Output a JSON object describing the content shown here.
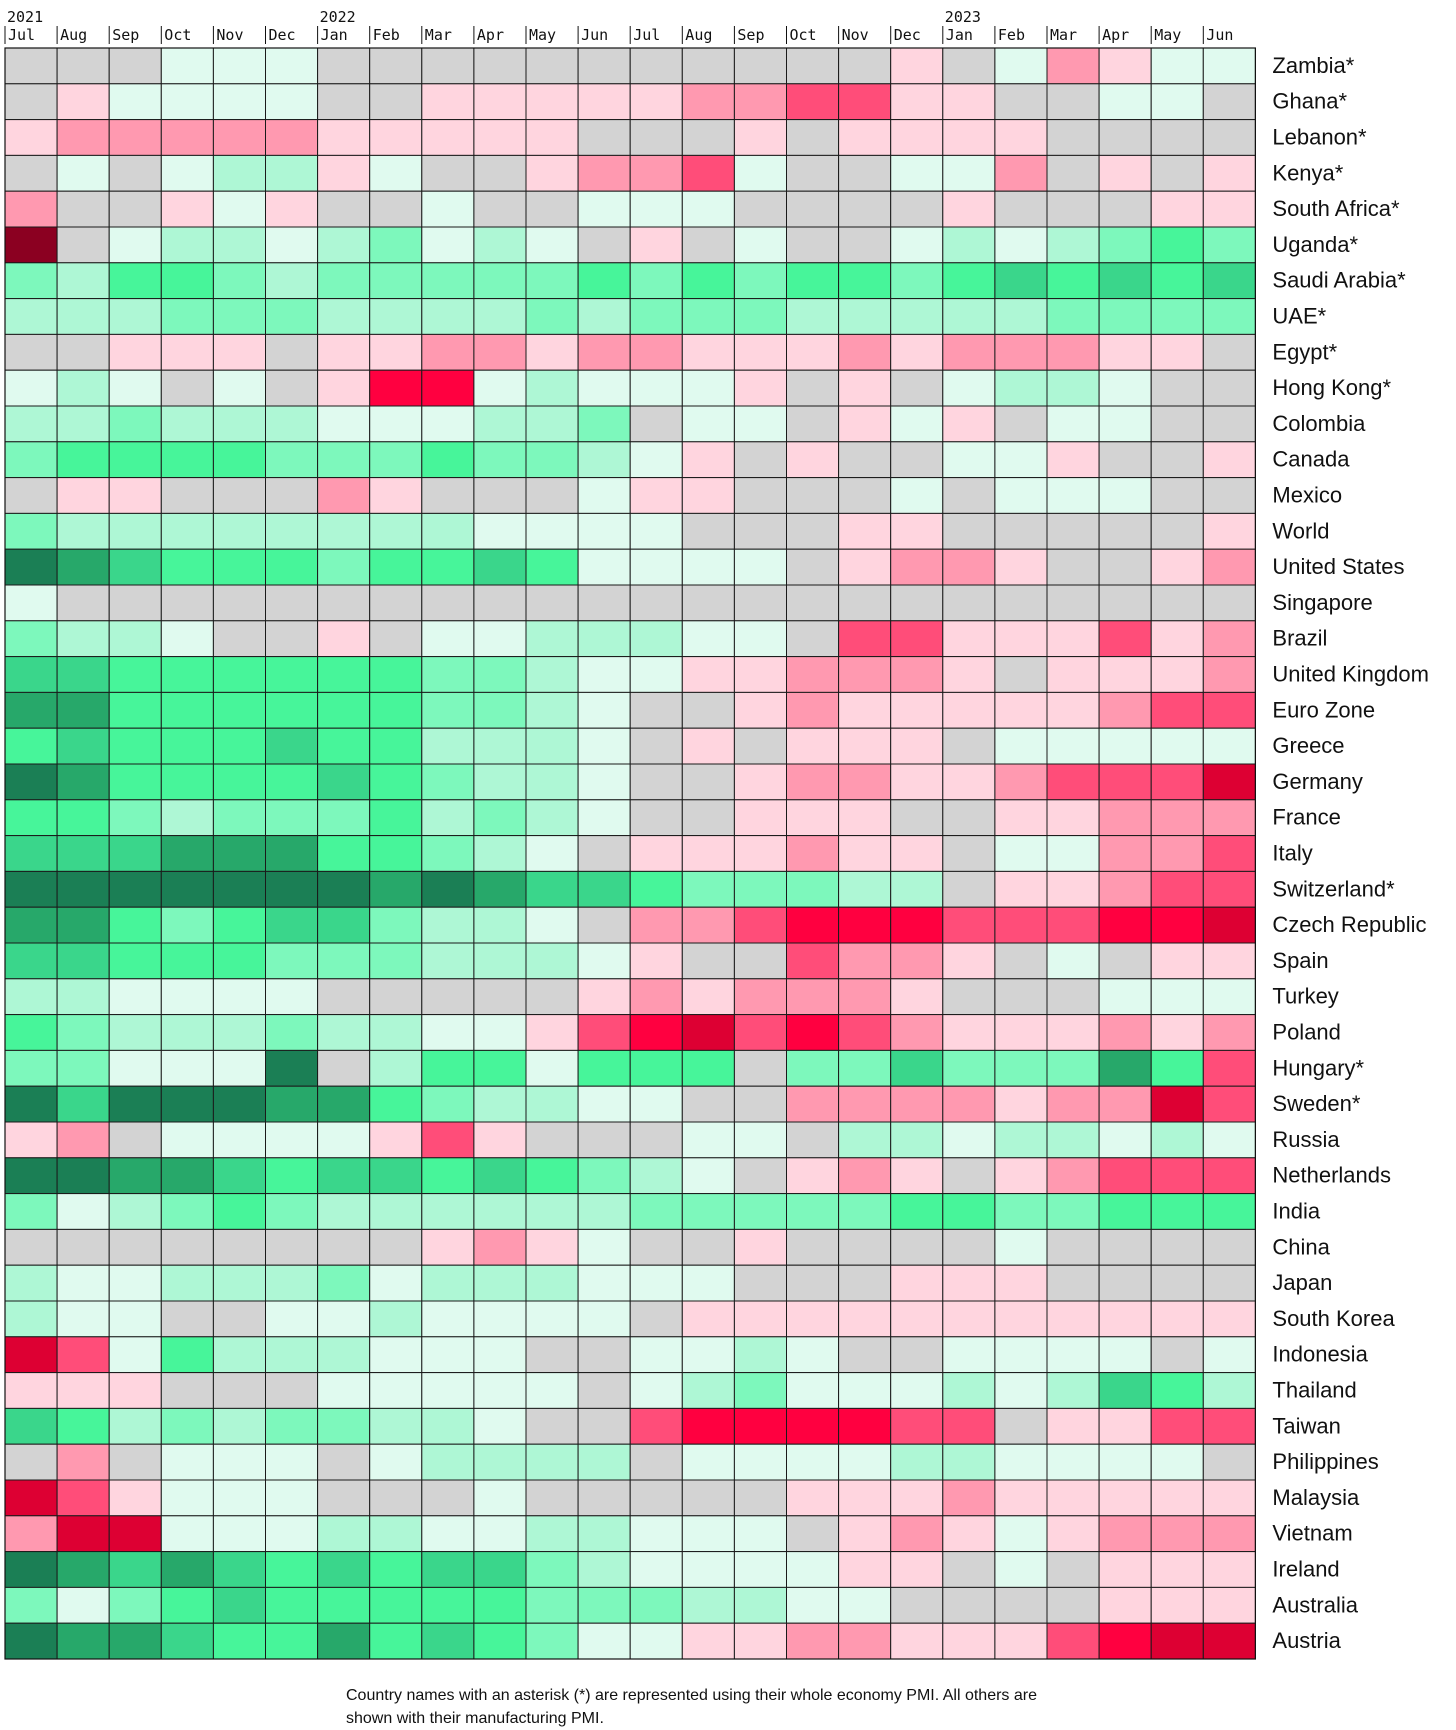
{
  "chart_data": {
    "type": "heatmap",
    "title": "",
    "x_years": [
      {
        "label": "2021",
        "start_index": 0
      },
      {
        "label": "2022",
        "start_index": 6
      },
      {
        "label": "2023",
        "start_index": 18
      }
    ],
    "x": [
      "Jul",
      "Aug",
      "Sep",
      "Oct",
      "Nov",
      "Dec",
      "Jan",
      "Feb",
      "Mar",
      "Apr",
      "May",
      "Jun",
      "Jul",
      "Aug",
      "Sep",
      "Oct",
      "Nov",
      "Dec",
      "Jan",
      "Feb",
      "Mar",
      "Apr",
      "May",
      "Jun"
    ],
    "legend_scale": {
      "R4": "#dd0033",
      "R3": "#ff0040",
      "R2": "#ff4d79",
      "R1": "#ff99b0",
      "R0": "#ffd5df",
      "N": "#d3d3d3",
      "G0": "#e0faef",
      "G1": "#aef7d5",
      "G2": "#7df8bc",
      "G3": "#47f59a",
      "G4": "#3ad68b",
      "G5": "#27a86a",
      "G6": "#1b7f55",
      "X": "#8b0021"
    },
    "rows": [
      {
        "name": "Zambia*",
        "cells": "N N N G0 G0 G0 N N N N N N N N N N N R0 N G0 R1 R0 G0 G0"
      },
      {
        "name": "Ghana*",
        "cells": "N R0 G0 G0 G0 G0 N N R0 R0 R0 R0 R0 R1 R1 R2 R2 R0 R0 N N G0 G0 N"
      },
      {
        "name": "Lebanon*",
        "cells": "R0 R1 R1 R1 R1 R1 R0 R0 R0 R0 R0 N N N R0 N R0 R0 R0 R0 N N N N"
      },
      {
        "name": "Kenya*",
        "cells": "N G0 N G0 G1 G1 R0 G0 N N R0 R1 R1 R2 G0 N N G0 G0 R1 N R0 N R0"
      },
      {
        "name": "South Africa*",
        "cells": "R1 N N R0 G0 R0 N N G0 N N G0 G0 G0 N N N N R0 N N N R0 R0"
      },
      {
        "name": "Uganda*",
        "cells": "X N G0 G1 G1 G0 G1 G2 G0 G1 G0 N R0 N G0 N N G0 G1 G0 G1 G2 G3 G2"
      },
      {
        "name": "Saudi Arabia*",
        "cells": "G2 G1 G3 G3 G2 G1 G2 G2 G2 G2 G2 G3 G2 G3 G2 G3 G3 G2 G3 G4 G3 G4 G3 G4"
      },
      {
        "name": "UAE*",
        "cells": "G1 G1 G1 G2 G2 G2 G1 G1 G1 G1 G2 G1 G2 G2 G2 G1 G1 G1 G1 G1 G2 G2 G2 G2"
      },
      {
        "name": "Egypt*",
        "cells": "N N R0 R0 R0 N R0 R0 R1 R1 R0 R1 R1 R0 R0 R0 R1 R0 R1 R1 R1 R0 R0 N"
      },
      {
        "name": "Hong Kong*",
        "cells": "G0 G1 G0 N G0 N R0 R3 R3 G0 G1 G0 G0 G0 R0 N R0 N G0 G1 G1 G0 N N"
      },
      {
        "name": "Colombia",
        "cells": "G1 G1 G2 G1 G1 G1 G0 G0 G0 G1 G1 G2 N G0 G0 N R0 G0 R0 N G0 G0 N N"
      },
      {
        "name": "Canada",
        "cells": "G2 G3 G3 G3 G3 G2 G2 G2 G3 G2 G2 G1 G0 R0 N R0 N N G0 G0 R0 N N R0"
      },
      {
        "name": "Mexico",
        "cells": "N R0 R0 N N N R1 R0 N N N G0 R0 R0 N N N G0 N G0 G0 G0 N N"
      },
      {
        "name": "World",
        "cells": "G2 G1 G1 G1 G1 G1 G1 G1 G1 G0 G0 G0 G0 N N N R0 R0 N N N N N R0"
      },
      {
        "name": "United States",
        "cells": "G6 G5 G4 G3 G3 G3 G2 G3 G3 G4 G3 G0 G0 G0 G0 N R0 R1 R1 R0 N N R0 R1"
      },
      {
        "name": "Singapore",
        "cells": "G0 N N N N N N N N N N N N N N N N N N N N N N N"
      },
      {
        "name": "Brazil",
        "cells": "G2 G1 G1 G0 N N R0 N G0 G0 G1 G1 G1 G0 G0 N R2 R2 R0 R0 R0 R2 R0 R1"
      },
      {
        "name": "United Kingdom",
        "cells": "G4 G4 G3 G3 G3 G3 G3 G3 G2 G2 G1 G0 G0 R0 R0 R1 R1 R1 R0 N R0 R0 R0 R1"
      },
      {
        "name": "Euro Zone",
        "cells": "G5 G5 G3 G3 G3 G3 G3 G3 G2 G2 G1 G0 N N R0 R1 R0 R0 R0 R0 R0 R1 R2 R2"
      },
      {
        "name": "Greece",
        "cells": "G3 G4 G3 G3 G3 G4 G3 G3 G1 G1 G1 G0 N R0 N R0 R0 R0 N G0 G0 G0 G0 G0"
      },
      {
        "name": "Germany",
        "cells": "G6 G5 G3 G3 G3 G3 G4 G3 G2 G1 G1 G0 N N R0 R1 R1 R0 R0 R1 R2 R2 R2 R4"
      },
      {
        "name": "France",
        "cells": "G3 G3 G2 G1 G2 G2 G2 G3 G1 G2 G1 G0 N N R0 R0 R0 N N R0 R0 R1 R1 R1"
      },
      {
        "name": "Italy",
        "cells": "G4 G4 G4 G5 G5 G5 G3 G3 G2 G1 G0 N R0 R0 R0 R1 R0 R0 N G0 G0 R1 R1 R2"
      },
      {
        "name": "Switzerland*",
        "cells": "G6 G6 G6 G6 G6 G6 G6 G5 G6 G5 G4 G4 G3 G2 G2 G2 G1 G1 N R0 R0 R1 R2 R2"
      },
      {
        "name": "Czech Republic",
        "cells": "G5 G5 G3 G2 G3 G4 G4 G2 G1 G1 G0 N R1 R1 R2 R3 R3 R3 R2 R2 R2 R3 R3 R4"
      },
      {
        "name": "Spain",
        "cells": "G4 G4 G3 G3 G3 G2 G2 G2 G1 G1 G1 G0 R0 N N R2 R1 R1 R0 N G0 N R0 R0"
      },
      {
        "name": "Turkey",
        "cells": "G1 G1 G0 G0 G0 G0 N N N N N R0 R1 R0 R1 R1 R1 R0 N N N G0 G0 G0"
      },
      {
        "name": "Poland",
        "cells": "G3 G2 G1 G1 G1 G2 G1 G1 G0 G0 R0 R2 R3 R4 R2 R3 R2 R1 R0 R0 R0 R1 R0 R1"
      },
      {
        "name": "Hungary*",
        "cells": "G2 G2 G0 G0 G0 G6 N G1 G3 G3 G0 G3 G3 G3 N G2 G2 G4 G2 G2 G2 G5 G3 R2"
      },
      {
        "name": "Sweden*",
        "cells": "G6 G4 G6 G6 G6 G5 G5 G3 G2 G1 G1 G0 G0 N N R1 R1 R1 R1 R0 R1 R1 R4 R2"
      },
      {
        "name": "Russia",
        "cells": "R0 R1 N G0 G0 G0 G0 R0 R2 R0 N N N G0 G0 N G1 G1 G0 G1 G1 G0 G1 G0"
      },
      {
        "name": "Netherlands",
        "cells": "G6 G6 G5 G5 G4 G3 G4 G4 G3 G4 G3 G2 G1 G0 N R0 R1 R0 N R0 R1 R2 R2 R2"
      },
      {
        "name": "India",
        "cells": "G2 G0 G1 G2 G3 G2 G1 G1 G1 G1 G1 G1 G2 G2 G2 G2 G2 G3 G3 G2 G2 G3 G3 G3"
      },
      {
        "name": "China",
        "cells": "N N N N N N N N R0 R1 R0 G0 N N R0 N N N N G0 N N N N"
      },
      {
        "name": "Japan",
        "cells": "G1 G0 G0 G1 G1 G1 G2 G0 G1 G1 G1 G0 G0 G0 N N N R0 R0 R0 N N N N"
      },
      {
        "name": "South Korea",
        "cells": "G1 G0 G0 N N G0 G0 G1 G0 G0 G0 G0 N R0 R0 R0 R0 R0 R0 R0 R0 R0 R0 R0"
      },
      {
        "name": "Indonesia",
        "cells": "R4 R2 G0 G3 G1 G1 G1 G0 G0 G0 N N G0 G0 G1 G0 N N G0 G0 G0 G0 N G0"
      },
      {
        "name": "Thailand",
        "cells": "R0 R0 R0 N N N G0 G0 G0 G0 G0 N G0 G1 G2 G0 G0 G0 G1 G0 G1 G4 G3 G1"
      },
      {
        "name": "Taiwan",
        "cells": "G4 G3 G1 G2 G1 G2 G2 G1 G1 G0 N N R2 R3 R3 R3 R3 R2 R2 N R0 R0 R2 R2"
      },
      {
        "name": "Philippines",
        "cells": "N R1 N G0 G0 G0 N G0 G1 G1 G1 G1 N G0 G0 G0 G0 G1 G1 G0 G0 G0 G0 N"
      },
      {
        "name": "Malaysia",
        "cells": "R4 R2 R0 G0 G0 G0 N N N G0 N N N N N R0 R0 R0 R1 R0 R0 R0 R0 R0"
      },
      {
        "name": "Vietnam",
        "cells": "R1 R4 R4 G0 G0 G0 G1 G1 G0 G0 G1 G1 G0 G0 G0 N R0 R1 R0 G0 R0 R1 R1 R1"
      },
      {
        "name": "Ireland",
        "cells": "G6 G5 G4 G5 G4 G3 G4 G3 G4 G4 G2 G1 G0 G0 G0 G0 R0 R0 N G0 N R0 R0 R0"
      },
      {
        "name": "Australia",
        "cells": "G2 G0 G2 G3 G4 G3 G3 G3 G3 G3 G2 G2 G2 G1 G1 G0 G0 N N N N R0 R0 R0"
      },
      {
        "name": "Austria",
        "cells": "G6 G5 G5 G4 G3 G3 G5 G3 G4 G3 G2 G0 G0 R0 R0 R1 R1 R0 R0 R0 R2 R3 R4 R4"
      }
    ]
  },
  "footnote": {
    "line1": "Country names with an asterisk (*) are represented using their whole economy PMI. All others are",
    "line2": "shown with their manufacturing PMI."
  }
}
